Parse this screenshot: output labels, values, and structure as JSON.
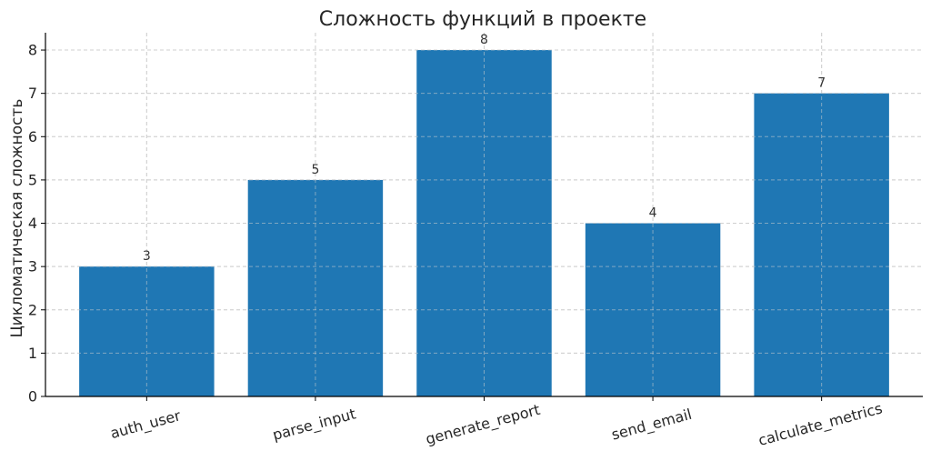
{
  "chart_data": {
    "type": "bar",
    "title": "Сложность функций в проекте",
    "xlabel": "",
    "ylabel": "Цикломатическая сложность",
    "categories": [
      "auth_user",
      "parse_input",
      "generate_report",
      "send_email",
      "calculate_metrics"
    ],
    "values": [
      3,
      5,
      8,
      4,
      7
    ],
    "data_labels": [
      "3",
      "5",
      "8",
      "4",
      "7"
    ],
    "ylim": [
      0,
      8.4
    ],
    "yticks": [
      0,
      1,
      2,
      3,
      4,
      5,
      6,
      7,
      8
    ],
    "ytick_labels": [
      "0",
      "1",
      "2",
      "3",
      "4",
      "5",
      "6",
      "7",
      "8"
    ],
    "grid": true,
    "bar_color": "#1f77b4",
    "xtick_rotation": -15
  }
}
